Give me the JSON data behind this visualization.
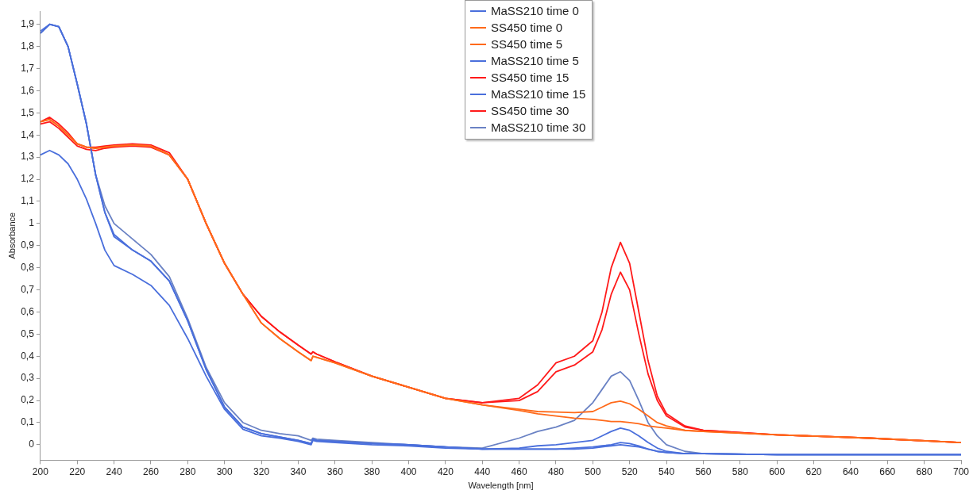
{
  "chart_data": {
    "type": "line",
    "xlabel": "Wavelength [nm]",
    "ylabel": "Absorbance",
    "x": [
      200,
      205,
      210,
      215,
      220,
      225,
      230,
      235,
      240,
      250,
      260,
      270,
      280,
      290,
      300,
      310,
      320,
      330,
      340,
      347,
      348,
      350,
      360,
      380,
      400,
      420,
      440,
      460,
      470,
      480,
      490,
      500,
      505,
      510,
      515,
      520,
      525,
      530,
      535,
      540,
      550,
      560,
      600,
      650,
      700
    ],
    "xlim": [
      200,
      700
    ],
    "ylim": [
      -0.07,
      1.96
    ],
    "xticks": [
      200,
      220,
      240,
      260,
      280,
      300,
      320,
      340,
      360,
      380,
      400,
      420,
      440,
      460,
      480,
      500,
      520,
      540,
      560,
      580,
      600,
      620,
      640,
      660,
      680,
      700
    ],
    "yticks": [
      0,
      {
        "value": 0.1,
        "label": "0,1"
      },
      {
        "value": 0.2,
        "label": "0,2"
      },
      {
        "value": 0.3,
        "label": "0,3"
      },
      {
        "value": 0.4,
        "label": "0,4"
      },
      {
        "value": 0.5,
        "label": "0,5"
      },
      {
        "value": 0.6,
        "label": "0,6"
      },
      {
        "value": 0.7,
        "label": "0,7"
      },
      {
        "value": 0.8,
        "label": "0,8"
      },
      {
        "value": 0.9,
        "label": "0,9"
      },
      1,
      {
        "value": 1.1,
        "label": "1,1"
      },
      {
        "value": 1.2,
        "label": "1,2"
      },
      {
        "value": 1.3,
        "label": "1,3"
      },
      {
        "value": 1.4,
        "label": "1,4"
      },
      {
        "value": 1.5,
        "label": "1,5"
      },
      {
        "value": 1.6,
        "label": "1,6"
      },
      {
        "value": 1.7,
        "label": "1,7"
      },
      {
        "value": 1.8,
        "label": "1,8"
      },
      {
        "value": 1.9,
        "label": "1,9"
      }
    ],
    "grid": false,
    "legend": "top",
    "marker": "none",
    "line_style": "solid",
    "series": [
      {
        "name": "MaSS210 time 0",
        "color": "#4a6fdc",
        "values": [
          1.31,
          1.33,
          1.31,
          1.27,
          1.2,
          1.11,
          1.0,
          0.88,
          0.81,
          0.77,
          0.72,
          0.63,
          0.48,
          0.31,
          0.16,
          0.07,
          0.04,
          0.03,
          0.015,
          0.0,
          0.02,
          0.015,
          0.01,
          0.0,
          -0.005,
          -0.015,
          -0.02,
          -0.02,
          -0.02,
          -0.02,
          -0.02,
          -0.015,
          -0.01,
          -0.005,
          0.0,
          -0.005,
          -0.01,
          -0.02,
          -0.03,
          -0.035,
          -0.04,
          -0.04,
          -0.045,
          -0.045,
          -0.045
        ]
      },
      {
        "name": "SS450 time 0",
        "color": "#ff6a1a",
        "values": [
          1.46,
          1.47,
          1.44,
          1.4,
          1.36,
          1.345,
          1.34,
          1.345,
          1.35,
          1.355,
          1.35,
          1.31,
          1.2,
          1.0,
          0.82,
          0.68,
          0.55,
          0.48,
          0.42,
          0.38,
          0.4,
          0.395,
          0.37,
          0.31,
          0.26,
          0.21,
          0.18,
          0.155,
          0.14,
          0.13,
          0.12,
          0.115,
          0.11,
          0.105,
          0.105,
          0.1,
          0.095,
          0.085,
          0.08,
          0.075,
          0.065,
          0.06,
          0.045,
          0.03,
          0.01
        ]
      },
      {
        "name": "SS450 time 5",
        "color": "#ff6a1a",
        "values": [
          1.46,
          1.47,
          1.44,
          1.4,
          1.36,
          1.345,
          1.34,
          1.345,
          1.35,
          1.355,
          1.35,
          1.31,
          1.2,
          1.0,
          0.82,
          0.68,
          0.55,
          0.48,
          0.42,
          0.38,
          0.4,
          0.395,
          0.37,
          0.31,
          0.26,
          0.21,
          0.18,
          0.16,
          0.15,
          0.148,
          0.145,
          0.15,
          0.17,
          0.19,
          0.197,
          0.185,
          0.16,
          0.13,
          0.1,
          0.085,
          0.065,
          0.06,
          0.045,
          0.03,
          0.01
        ]
      },
      {
        "name": "MaSS210 time 5",
        "color": "#4a6fdc",
        "values": [
          1.86,
          1.9,
          1.89,
          1.8,
          1.63,
          1.45,
          1.22,
          1.05,
          0.95,
          0.88,
          0.83,
          0.74,
          0.56,
          0.34,
          0.17,
          0.08,
          0.05,
          0.035,
          0.02,
          0.005,
          0.025,
          0.02,
          0.015,
          0.005,
          0.0,
          -0.01,
          -0.02,
          -0.02,
          -0.02,
          -0.02,
          -0.015,
          -0.01,
          -0.005,
          0.0,
          0.01,
          0.005,
          -0.005,
          -0.02,
          -0.03,
          -0.035,
          -0.04,
          -0.04,
          -0.045,
          -0.045,
          -0.045
        ]
      },
      {
        "name": "SS450 time 15",
        "color": "#ff1a1a",
        "values": [
          1.45,
          1.46,
          1.43,
          1.39,
          1.35,
          1.335,
          1.33,
          1.34,
          1.345,
          1.35,
          1.345,
          1.31,
          1.2,
          1.0,
          0.82,
          0.68,
          0.58,
          0.51,
          0.45,
          0.41,
          0.42,
          0.41,
          0.375,
          0.31,
          0.26,
          0.21,
          0.19,
          0.2,
          0.24,
          0.33,
          0.36,
          0.42,
          0.52,
          0.68,
          0.78,
          0.7,
          0.5,
          0.32,
          0.2,
          0.13,
          0.08,
          0.065,
          0.045,
          0.03,
          0.01
        ]
      },
      {
        "name": "MaSS210 time 15",
        "color": "#4a6fdc",
        "values": [
          1.87,
          1.9,
          1.89,
          1.8,
          1.63,
          1.45,
          1.22,
          1.05,
          0.94,
          0.88,
          0.83,
          0.74,
          0.56,
          0.34,
          0.17,
          0.08,
          0.05,
          0.035,
          0.02,
          0.005,
          0.025,
          0.02,
          0.015,
          0.005,
          0.0,
          -0.01,
          -0.02,
          -0.015,
          -0.005,
          0.0,
          0.01,
          0.02,
          0.04,
          0.06,
          0.075,
          0.065,
          0.04,
          0.01,
          -0.015,
          -0.03,
          -0.04,
          -0.04,
          -0.045,
          -0.045,
          -0.045
        ]
      },
      {
        "name": "SS450 time 30",
        "color": "#ff1a1a",
        "values": [
          1.46,
          1.48,
          1.45,
          1.41,
          1.36,
          1.345,
          1.345,
          1.35,
          1.355,
          1.36,
          1.355,
          1.32,
          1.2,
          1.0,
          0.82,
          0.68,
          0.58,
          0.51,
          0.45,
          0.41,
          0.42,
          0.41,
          0.375,
          0.31,
          0.26,
          0.21,
          0.19,
          0.21,
          0.27,
          0.37,
          0.4,
          0.47,
          0.6,
          0.8,
          0.915,
          0.82,
          0.6,
          0.38,
          0.22,
          0.14,
          0.085,
          0.065,
          0.045,
          0.03,
          0.01
        ]
      },
      {
        "name": "MaSS210 time 30",
        "color": "#6a82c4",
        "values": [
          1.86,
          1.9,
          1.89,
          1.8,
          1.63,
          1.45,
          1.22,
          1.08,
          1.0,
          0.93,
          0.86,
          0.76,
          0.57,
          0.35,
          0.19,
          0.1,
          0.065,
          0.05,
          0.04,
          0.02,
          0.03,
          0.025,
          0.02,
          0.01,
          0.0,
          -0.01,
          -0.015,
          0.03,
          0.06,
          0.08,
          0.11,
          0.19,
          0.25,
          0.31,
          0.33,
          0.29,
          0.2,
          0.1,
          0.04,
          0.0,
          -0.03,
          -0.04,
          -0.045,
          -0.045,
          -0.045
        ]
      }
    ]
  }
}
